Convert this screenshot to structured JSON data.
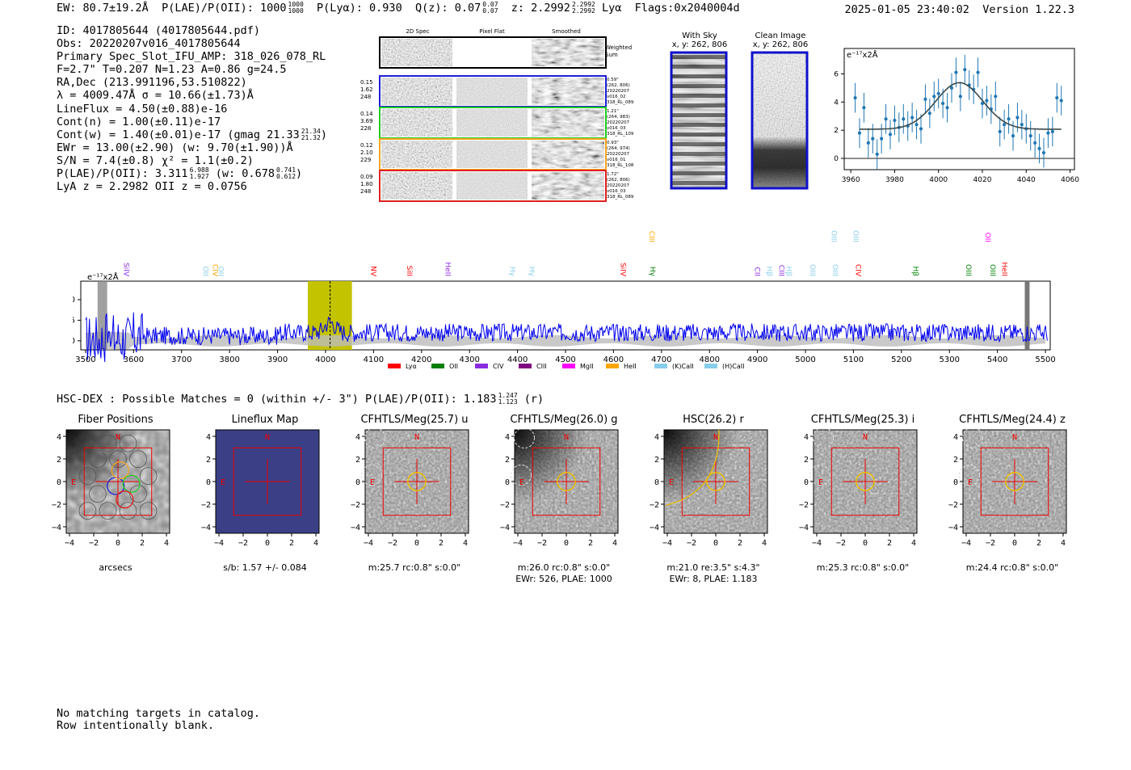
{
  "header": {
    "ew": "EW: 80.7±19.2Å",
    "plae_label": "P(LAE)/P(OII): 1000",
    "plae_hi": "1000",
    "plae_lo": "1000",
    "plya": "P(Lyα): 0.930",
    "qz_label": "Q(z): 0.07",
    "qz_hi": "0.07",
    "qz_lo": "0.07",
    "z_label": "z: 2.2992",
    "z_hi": "2.2992",
    "z_lo": "2.2992",
    "z_line": "Lyα",
    "flags": "Flags:0x2040004d",
    "datetime": "2025-01-05 23:40:02",
    "version": "Version 1.22.3"
  },
  "info": {
    "id": "ID: 4017805644 (4017805644.pdf)",
    "obs": "Obs: 20220207v016_4017805644",
    "primary": "Primary Spec_Slot_IFU_AMP: 318_026_078_RL",
    "params": "F=2.7\"  T=0.207  N=1.23  A=0.86  g=24.5",
    "radec": "RA,Dec (213.991196,53.510822)",
    "lambda": "λ = 4009.47Å   σ = 10.66(±1.73)Å",
    "lineflux": "LineFlux = 4.50(±0.88)e-16",
    "contn": "Cont(n) = 1.00(±0.11)e-17",
    "contw": "Cont(w) = 1.40(±0.01)e-17 (gmag 21.33",
    "gmag_hi": "21.34",
    "gmag_lo": "21.32",
    "contw_end": ")",
    "ewr": "EWr = 13.00(±2.90) (w: 9.70(±1.90))Å",
    "sn": "S/N = 7.4(±0.8)  χ² = 1.1(±0.2)",
    "plae2": "P(LAE)/P(OII): 3.311",
    "plae2_hi": "6.988",
    "plae2_lo": "1.927",
    "plae2_w": "(w: 0.678",
    "plae2_w_hi": "0.741",
    "plae2_w_lo": "0.612",
    "plae2_end": ")",
    "lyaz": "LyA z = 2.2982  OII z = 0.0756"
  },
  "spec_panel": {
    "headers": [
      "2D Spec",
      "Pixel Flat",
      "Smoothed"
    ],
    "weighted": [
      "Weighted",
      "Sum"
    ],
    "rows": [
      {
        "left": [
          "0.15",
          "1.62",
          "248"
        ],
        "right": [
          "0.59\"",
          "(262, 806)",
          "20220207",
          "v016_02",
          "318_RL_089"
        ],
        "color": "#1f1fd6"
      },
      {
        "left": [
          "0.14",
          "3.69",
          "228"
        ],
        "right": [
          "1.21\"",
          "(264, 983)",
          "20220207",
          "v016_03",
          "318_RL_109"
        ],
        "color": "#22cc22"
      },
      {
        "left": [
          "0.12",
          "2.10",
          "229"
        ],
        "right": [
          "0.93\"",
          "(264, 974)",
          "20220207",
          "v016_01",
          "318_RL_108"
        ],
        "color": "#f5a623"
      },
      {
        "left": [
          "0.09",
          "1.80",
          "248"
        ],
        "right": [
          "1.72\"",
          "(262, 806)",
          "20220207",
          "v016_03",
          "318_RL_089"
        ],
        "color": "#e02020"
      }
    ]
  },
  "sky": {
    "title": "With Sky",
    "coords": "x, y: 262, 806"
  },
  "clean": {
    "title": "Clean Image",
    "coords": "x, y: 262, 806"
  },
  "line_fit": {
    "unit": "e⁻¹⁷x2Å",
    "x_ticks": [
      "3960",
      "3980",
      "4000",
      "4020",
      "4040",
      "4060"
    ],
    "y_ticks": [
      "0",
      "2",
      "4",
      "6"
    ],
    "xlim": [
      3957,
      4062
    ],
    "ylim": [
      -0.8,
      7.8
    ],
    "points": [
      [
        3962,
        4.3
      ],
      [
        3964,
        1.8
      ],
      [
        3966,
        3.6
      ],
      [
        3968,
        1.1
      ],
      [
        3970,
        1.4
      ],
      [
        3972,
        0.3
      ],
      [
        3974,
        1.4
      ],
      [
        3976,
        2.8
      ],
      [
        3978,
        1.7
      ],
      [
        3980,
        2.7
      ],
      [
        3982,
        2.2
      ],
      [
        3984,
        2.8
      ],
      [
        3986,
        2.3
      ],
      [
        3988,
        2.9
      ],
      [
        3990,
        2.4
      ],
      [
        3992,
        2.1
      ],
      [
        3994,
        4.2
      ],
      [
        3996,
        3.2
      ],
      [
        3998,
        4.4
      ],
      [
        4000,
        4.6
      ],
      [
        4002,
        3.9
      ],
      [
        4004,
        3.6
      ],
      [
        4006,
        5.0
      ],
      [
        4008,
        6.1
      ],
      [
        4010,
        4.4
      ],
      [
        4012,
        6.3
      ],
      [
        4014,
        5.2
      ],
      [
        4016,
        4.9
      ],
      [
        4018,
        6.1
      ],
      [
        4020,
        3.9
      ],
      [
        4022,
        4.1
      ],
      [
        4024,
        3.5
      ],
      [
        4026,
        4.4
      ],
      [
        4028,
        1.9
      ],
      [
        4030,
        2.4
      ],
      [
        4032,
        2.8
      ],
      [
        4034,
        1.6
      ],
      [
        4036,
        2.9
      ],
      [
        4038,
        2.4
      ],
      [
        4040,
        2.1
      ],
      [
        4042,
        1.6
      ],
      [
        4044,
        1.1
      ],
      [
        4046,
        0.7
      ],
      [
        4048,
        0.4
      ],
      [
        4050,
        1.8
      ],
      [
        4052,
        1.9
      ],
      [
        4054,
        4.3
      ],
      [
        4056,
        4.1
      ]
    ],
    "model": {
      "base": 2.07,
      "amp": 3.3,
      "center": 4009.5,
      "sigma": 10.7
    }
  },
  "wide_spec": {
    "unit": "e⁻¹⁷x2Å",
    "x_ticks": [
      "3500",
      "3600",
      "3700",
      "3800",
      "3900",
      "4000",
      "4100",
      "4200",
      "4300",
      "4400",
      "4500",
      "4600",
      "4700",
      "4800",
      "4900",
      "5000",
      "5100",
      "5200",
      "5300",
      "5400",
      "5500"
    ],
    "y_ticks": [
      "0",
      "5",
      "10"
    ],
    "xlim": [
      3490,
      5510
    ],
    "ylim": [
      -2.2,
      14.5
    ],
    "highlight": [
      3963,
      4055
    ],
    "marker": 4009.5,
    "lines": [
      {
        "name": "SiIV",
        "wave": 3575,
        "color": "#8a2be2",
        "tier": 2
      },
      {
        "name": "OII",
        "wave": 3740,
        "color": "#87ceeb",
        "tier": 2
      },
      {
        "name": "CIV",
        "wave": 3760,
        "color": "#ffa500",
        "tier": 2
      },
      {
        "name": "OII",
        "wave": 3772,
        "color": "#87ceeb",
        "tier": 2
      },
      {
        "name": "NV",
        "wave": 4090,
        "color": "#ff0000",
        "tier": 2
      },
      {
        "name": "SiII",
        "wave": 4165,
        "color": "#ff0000",
        "tier": 2
      },
      {
        "name": "HeII",
        "wave": 4245,
        "color": "#8a2be2",
        "tier": 2
      },
      {
        "name": "Hγ",
        "wave": 4380,
        "color": "#87ceeb",
        "tier": 2
      },
      {
        "name": "Hγ",
        "wave": 4420,
        "color": "#87ceeb",
        "tier": 2
      },
      {
        "name": "SiIV",
        "wave": 4610,
        "color": "#ff0000",
        "tier": 2
      },
      {
        "name": "CIII",
        "wave": 4670,
        "color": "#ffa500",
        "tier": 0
      },
      {
        "name": "Hγ",
        "wave": 4672,
        "color": "#008000",
        "tier": 2
      },
      {
        "name": "CII",
        "wave": 4890,
        "color": "#8a2be2",
        "tier": 2
      },
      {
        "name": "Hβ",
        "wave": 4915,
        "color": "#87ceeb",
        "tier": 2
      },
      {
        "name": "CIII",
        "wave": 4940,
        "color": "#8a2be2",
        "tier": 2
      },
      {
        "name": "Hβ",
        "wave": 4955,
        "color": "#87ceeb",
        "tier": 2
      },
      {
        "name": "OIII",
        "wave": 5005,
        "color": "#87ceeb",
        "tier": 2
      },
      {
        "name": "OIII",
        "wave": 5050,
        "color": "#87ceeb",
        "tier": 0
      },
      {
        "name": "OIII",
        "wave": 5052,
        "color": "#87ceeb",
        "tier": 2
      },
      {
        "name": "OIII",
        "wave": 5095,
        "color": "#87ceeb",
        "tier": 0
      },
      {
        "name": "CIV",
        "wave": 5100,
        "color": "#ff0000",
        "tier": 2
      },
      {
        "name": "Hβ",
        "wave": 5220,
        "color": "#008000",
        "tier": 2
      },
      {
        "name": "OIII",
        "wave": 5330,
        "color": "#008000",
        "tier": 2
      },
      {
        "name": "OII",
        "wave": 5370,
        "color": "#ff00ff",
        "tier": 0
      },
      {
        "name": "OIII",
        "wave": 5380,
        "color": "#008000",
        "tier": 2
      },
      {
        "name": "HeII",
        "wave": 5405,
        "color": "#ff0000",
        "tier": 2
      }
    ],
    "legend": [
      {
        "label": "Lyα",
        "color": "#ff0000"
      },
      {
        "label": "OII",
        "color": "#008000"
      },
      {
        "label": "CIV",
        "color": "#8a2be2"
      },
      {
        "label": "CIII",
        "color": "#800080"
      },
      {
        "label": "MgII",
        "color": "#ff00ff"
      },
      {
        "label": "HeII",
        "color": "#ffa500"
      },
      {
        "label": "(K)CaII",
        "color": "#87ceeb"
      },
      {
        "label": "(H)CaII",
        "color": "#87ceeb"
      }
    ]
  },
  "hsc": {
    "label": "HSC-DEX : Possible Matches = 0 (within +/- 3\")  P(LAE)/P(OII): 1.183",
    "hi": "1.247",
    "lo": "1.123",
    "band": "(r)"
  },
  "cutouts": [
    {
      "title": "Fiber Positions",
      "sub1": "arcsecs",
      "sub2": ""
    },
    {
      "title": "Lineflux Map",
      "sub1": "s/b: 1.57 +/- 0.084",
      "sub2": ""
    },
    {
      "title": "CFHTLS/Meg(25.7) u",
      "sub1": "m:25.7 rc:0.8\"  s:0.0\"",
      "sub2": ""
    },
    {
      "title": "CFHTLS/Meg(26.0) g",
      "sub1": "m:26.0 rc:0.8\"  s:0.0\"",
      "sub2": "EWr: 526, PLAE: 1000"
    },
    {
      "title": "HSC(26.2) r",
      "sub1": "m:21.0  re:3.5\"  s:4.3\"",
      "sub2": "EWr: 8, PLAE: 1.183"
    },
    {
      "title": "CFHTLS/Meg(25.3) i",
      "sub1": "m:25.3 rc:0.8\"  s:0.0\"",
      "sub2": ""
    },
    {
      "title": "CFHTLS/Meg(24.4) z",
      "sub1": "m:24.4 rc:0.8\"  s:0.0\"",
      "sub2": ""
    }
  ],
  "cutout_axes": {
    "ticks": [
      "−4",
      "−2",
      "0",
      "2",
      "4"
    ],
    "ylabels": [
      "4",
      "2",
      "0",
      "−2",
      "−4"
    ],
    "north": "N",
    "east": "E"
  },
  "footer": [
    "No matching targets in catalog.",
    "Row intentionally blank."
  ]
}
